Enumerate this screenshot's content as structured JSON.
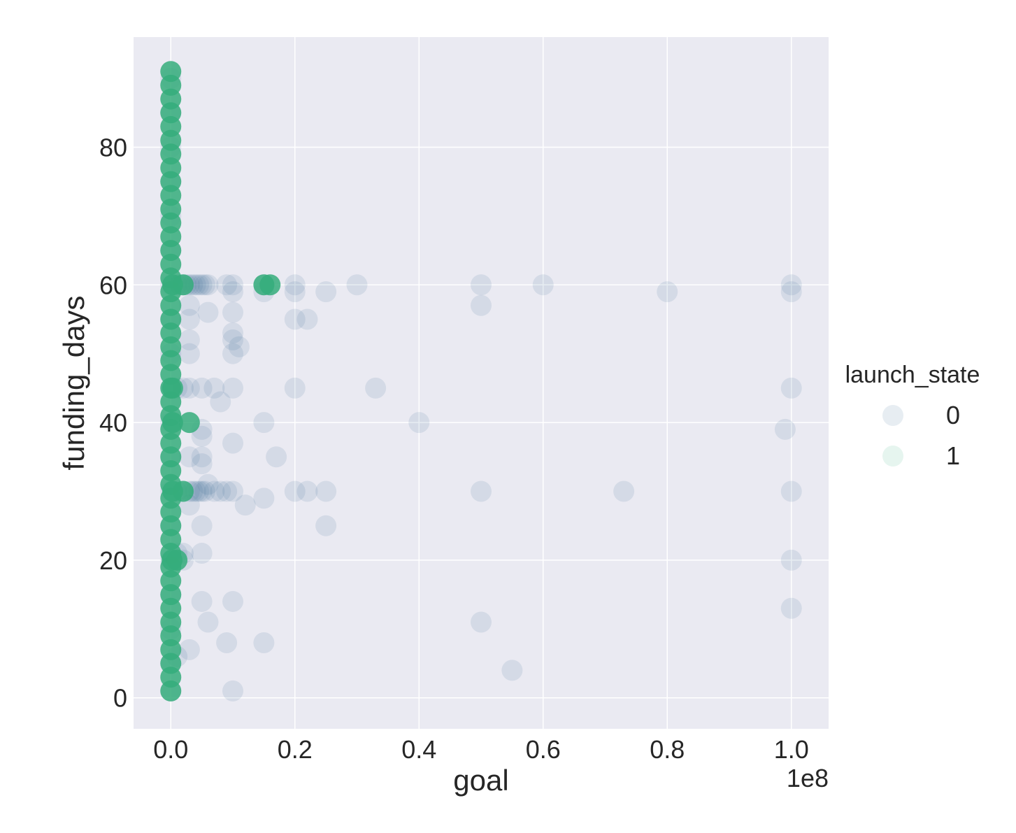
{
  "chart_data": {
    "type": "scatter",
    "title": "",
    "xlabel": "goal",
    "ylabel": "funding_days",
    "x_offset_label": "1e8",
    "xlim": [
      -0.06,
      1.06
    ],
    "ylim": [
      -4.5,
      96
    ],
    "x_ticks": [
      0.0,
      0.2,
      0.4,
      0.6,
      0.8,
      1.0
    ],
    "x_tick_labels": [
      "0.0",
      "0.2",
      "0.4",
      "0.6",
      "0.8",
      "1.0"
    ],
    "y_ticks": [
      0,
      20,
      40,
      60,
      80
    ],
    "y_tick_labels": [
      "0",
      "20",
      "40",
      "60",
      "80"
    ],
    "grid": true,
    "background_color": "#eaeaf2",
    "legend": {
      "title": "launch_state",
      "placement": "right"
    },
    "series": [
      {
        "name": "0",
        "color": "#3b6a94",
        "points": [
          [
            0.0,
            1
          ],
          [
            0.0,
            5
          ],
          [
            0.0,
            10
          ],
          [
            0.0,
            15
          ],
          [
            0.0,
            20
          ],
          [
            0.0,
            25
          ],
          [
            0.0,
            30
          ],
          [
            0.0,
            35
          ],
          [
            0.0,
            40
          ],
          [
            0.0,
            45
          ],
          [
            0.0,
            50
          ],
          [
            0.0,
            55
          ],
          [
            0.0,
            60
          ],
          [
            0.0,
            65
          ],
          [
            0.0,
            70
          ],
          [
            0.0,
            75
          ],
          [
            0.0,
            80
          ],
          [
            0.0,
            85
          ],
          [
            0.0,
            90
          ],
          [
            0.01,
            60
          ],
          [
            0.015,
            60
          ],
          [
            0.02,
            60
          ],
          [
            0.025,
            60
          ],
          [
            0.03,
            60
          ],
          [
            0.035,
            60
          ],
          [
            0.04,
            60
          ],
          [
            0.045,
            60
          ],
          [
            0.05,
            60
          ],
          [
            0.055,
            60
          ],
          [
            0.06,
            60
          ],
          [
            0.09,
            60
          ],
          [
            0.1,
            60
          ],
          [
            0.1,
            59
          ],
          [
            0.15,
            59
          ],
          [
            0.15,
            60
          ],
          [
            0.2,
            60
          ],
          [
            0.2,
            59
          ],
          [
            0.25,
            59
          ],
          [
            0.3,
            60
          ],
          [
            0.5,
            60
          ],
          [
            0.5,
            57
          ],
          [
            0.6,
            60
          ],
          [
            0.8,
            59
          ],
          [
            1.0,
            60
          ],
          [
            1.0,
            59
          ],
          [
            0.03,
            57
          ],
          [
            0.06,
            56
          ],
          [
            0.1,
            56
          ],
          [
            0.03,
            55
          ],
          [
            0.2,
            55
          ],
          [
            0.22,
            55
          ],
          [
            0.1,
            53
          ],
          [
            0.1,
            52
          ],
          [
            0.11,
            51
          ],
          [
            0.1,
            50
          ],
          [
            0.03,
            52
          ],
          [
            0.03,
            50
          ],
          [
            0.01,
            45
          ],
          [
            0.02,
            45
          ],
          [
            0.03,
            45
          ],
          [
            0.05,
            45
          ],
          [
            0.07,
            45
          ],
          [
            0.1,
            45
          ],
          [
            0.2,
            45
          ],
          [
            0.33,
            45
          ],
          [
            1.0,
            45
          ],
          [
            0.08,
            43
          ],
          [
            0.15,
            40
          ],
          [
            0.4,
            40
          ],
          [
            0.99,
            39
          ],
          [
            0.05,
            39
          ],
          [
            0.05,
            38
          ],
          [
            0.1,
            37
          ],
          [
            0.05,
            35
          ],
          [
            0.17,
            35
          ],
          [
            0.05,
            34
          ],
          [
            0.03,
            35
          ],
          [
            0.01,
            30
          ],
          [
            0.02,
            30
          ],
          [
            0.03,
            30
          ],
          [
            0.035,
            30
          ],
          [
            0.04,
            30
          ],
          [
            0.045,
            30
          ],
          [
            0.05,
            30
          ],
          [
            0.055,
            30
          ],
          [
            0.06,
            31
          ],
          [
            0.07,
            30
          ],
          [
            0.08,
            30
          ],
          [
            0.09,
            30
          ],
          [
            0.1,
            30
          ],
          [
            0.2,
            30
          ],
          [
            0.22,
            30
          ],
          [
            0.25,
            30
          ],
          [
            0.5,
            30
          ],
          [
            0.73,
            30
          ],
          [
            1.0,
            30
          ],
          [
            0.15,
            29
          ],
          [
            0.12,
            28
          ],
          [
            0.03,
            28
          ],
          [
            0.05,
            25
          ],
          [
            0.25,
            25
          ],
          [
            0.01,
            21
          ],
          [
            0.02,
            21
          ],
          [
            0.05,
            21
          ],
          [
            0.02,
            20
          ],
          [
            1.0,
            20
          ],
          [
            0.05,
            14
          ],
          [
            0.1,
            14
          ],
          [
            1.0,
            13
          ],
          [
            0.06,
            11
          ],
          [
            0.5,
            11
          ],
          [
            0.09,
            8
          ],
          [
            0.15,
            8
          ],
          [
            0.03,
            7
          ],
          [
            0.01,
            6
          ],
          [
            0.55,
            4
          ],
          [
            0.1,
            1
          ]
        ]
      },
      {
        "name": "1",
        "color": "#35ad7b",
        "points": [
          [
            0.0,
            1
          ],
          [
            0.0,
            3
          ],
          [
            0.0,
            5
          ],
          [
            0.0,
            7
          ],
          [
            0.0,
            9
          ],
          [
            0.0,
            11
          ],
          [
            0.0,
            13
          ],
          [
            0.0,
            15
          ],
          [
            0.0,
            17
          ],
          [
            0.0,
            19
          ],
          [
            0.0,
            21
          ],
          [
            0.0,
            23
          ],
          [
            0.0,
            25
          ],
          [
            0.0,
            27
          ],
          [
            0.0,
            29
          ],
          [
            0.0,
            31
          ],
          [
            0.0,
            33
          ],
          [
            0.0,
            35
          ],
          [
            0.0,
            37
          ],
          [
            0.0,
            39
          ],
          [
            0.0,
            41
          ],
          [
            0.0,
            43
          ],
          [
            0.0,
            45
          ],
          [
            0.0,
            47
          ],
          [
            0.0,
            49
          ],
          [
            0.0,
            51
          ],
          [
            0.0,
            53
          ],
          [
            0.0,
            55
          ],
          [
            0.0,
            57
          ],
          [
            0.0,
            59
          ],
          [
            0.0,
            61
          ],
          [
            0.0,
            63
          ],
          [
            0.0,
            65
          ],
          [
            0.0,
            67
          ],
          [
            0.0,
            69
          ],
          [
            0.0,
            71
          ],
          [
            0.0,
            73
          ],
          [
            0.0,
            75
          ],
          [
            0.0,
            77
          ],
          [
            0.0,
            79
          ],
          [
            0.0,
            81
          ],
          [
            0.0,
            83
          ],
          [
            0.0,
            85
          ],
          [
            0.0,
            87
          ],
          [
            0.0,
            89
          ],
          [
            0.0,
            91
          ],
          [
            0.003,
            30
          ],
          [
            0.003,
            60
          ],
          [
            0.003,
            45
          ],
          [
            0.002,
            20
          ],
          [
            0.003,
            40
          ],
          [
            0.02,
            60
          ],
          [
            0.03,
            40
          ],
          [
            0.15,
            60
          ],
          [
            0.16,
            60
          ],
          [
            0.02,
            30
          ],
          [
            0.01,
            20
          ]
        ]
      }
    ]
  }
}
